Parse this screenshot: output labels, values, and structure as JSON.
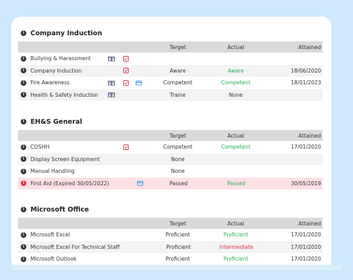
{
  "columns": {
    "target": "Target",
    "actual": "Actual",
    "attained": "Attained"
  },
  "sections": [
    {
      "title": "Company Induction",
      "rows": [
        {
          "name": "Bullying & Harassment",
          "book": true,
          "check": true,
          "card": false,
          "target": "",
          "actual": "",
          "actual_color": "",
          "attained": ""
        },
        {
          "name": "Company Induction",
          "book": false,
          "check": true,
          "card": false,
          "target": "Aware",
          "actual": "Aware",
          "actual_color": "green",
          "attained": "18/06/2020"
        },
        {
          "name": "Fire Awareness",
          "book": true,
          "check": true,
          "card": true,
          "target": "Competent",
          "actual": "Competent",
          "actual_color": "green",
          "attained": "18/01/2023"
        },
        {
          "name": "Health & Safety Induction",
          "book": true,
          "check": false,
          "card": false,
          "target": "Traine",
          "actual": "None",
          "actual_color": "",
          "attained": ""
        }
      ]
    },
    {
      "title": "EH&S General",
      "rows": [
        {
          "name": "COSHH",
          "book": false,
          "check": true,
          "card": false,
          "target": "Competent",
          "actual": "Competent",
          "actual_color": "green",
          "attained": "17/01/2020"
        },
        {
          "name": "Display Screen Equipment",
          "book": false,
          "check": false,
          "card": false,
          "target": "None",
          "actual": "",
          "actual_color": "",
          "attained": ""
        },
        {
          "name": "Manual Handling",
          "book": false,
          "check": false,
          "card": false,
          "target": "None",
          "actual": "",
          "actual_color": "",
          "attained": ""
        },
        {
          "name": "First Aid (Expired 30/05/2022)",
          "book": false,
          "check": false,
          "card": true,
          "expired": true,
          "target": "Passed",
          "actual": "Passed",
          "actual_color": "green",
          "attained": "30/05/2019"
        }
      ]
    },
    {
      "title": "Microsoft Office",
      "rows": [
        {
          "name": "Microsoft Excel",
          "book": false,
          "check": false,
          "card": false,
          "target": "Proficient",
          "actual": "Proficient",
          "actual_color": "green",
          "attained": "17/01/2020"
        },
        {
          "name": "Microsoft Excel For Technical Staff",
          "book": false,
          "check": false,
          "card": false,
          "target": "Proficient",
          "actual": "Intermediate",
          "actual_color": "red",
          "attained": "17/01/2020"
        },
        {
          "name": "Microsoft Outlook",
          "book": false,
          "check": false,
          "card": false,
          "target": "Proficient",
          "actual": "Proficient",
          "actual_color": "green",
          "attained": "17/01/2020"
        }
      ]
    }
  ],
  "colors": {
    "green": "#2fae55",
    "red": "#e0334f",
    "book_icon": "#4a4f7a",
    "check_icon": "#e0334f",
    "card_icon": "#3a9fe0"
  },
  "icons": {
    "info": "info-icon",
    "book": "book-icon",
    "check": "checkbox-icon",
    "card": "id-card-icon"
  }
}
